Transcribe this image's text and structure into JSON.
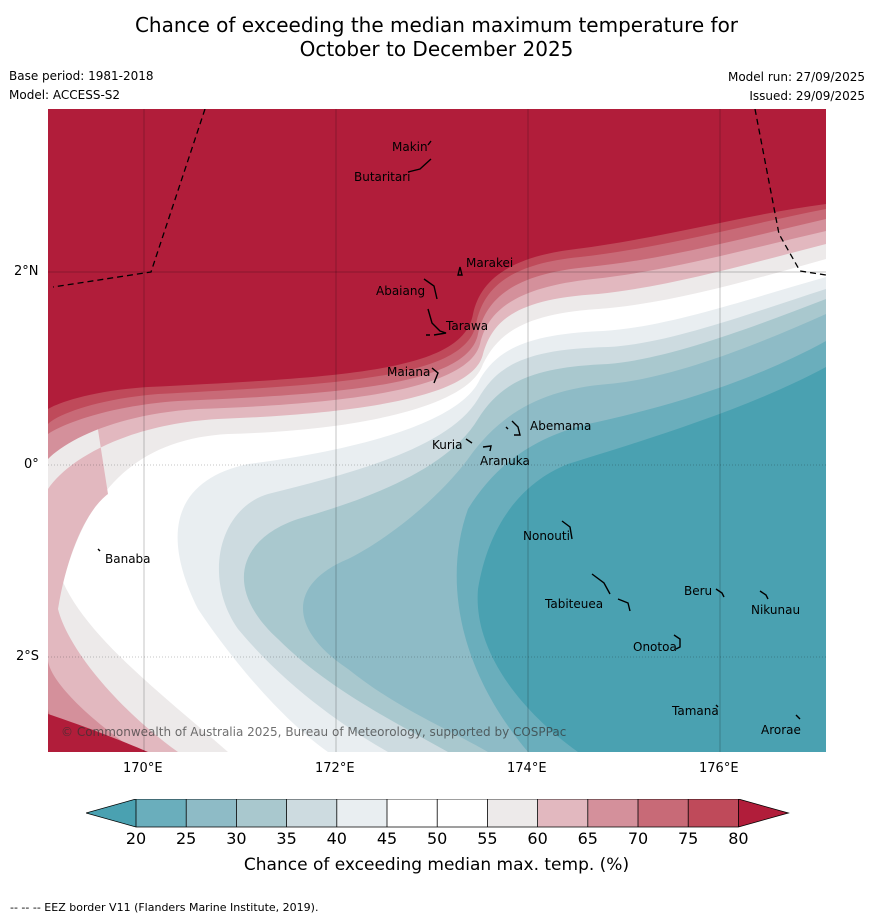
{
  "title": {
    "line1": "Chance of exceeding the median maximum temperature for",
    "line2": "October to December 2025"
  },
  "meta": {
    "base_period": "Base period: 1981-2018",
    "model": "Model: ACCESS-S2",
    "model_run": "Model run: 27/09/2025",
    "issued": "Issued: 29/09/2025"
  },
  "axes": {
    "x_ticks": [
      "170°E",
      "172°E",
      "174°E",
      "176°E"
    ],
    "y_ticks": [
      "2°N",
      "0°",
      "2°S"
    ]
  },
  "islands": {
    "makin": "Makin",
    "butaritari": "Butaritari",
    "marakei": "Marakei",
    "abaiang": "Abaiang",
    "tarawa": "Tarawa",
    "maiana": "Maiana",
    "abemama": "Abemama",
    "kuria": "Kuria",
    "aranuka": "Aranuka",
    "banaba": "Banaba",
    "nonouti": "Nonouti",
    "tabiteuea": "Tabiteuea",
    "beru": "Beru",
    "nikunau": "Nikunau",
    "onotoa": "Onotoa",
    "tamana": "Tamana",
    "arorae": "Arorae"
  },
  "copyright": "© Commonwealth of Australia 2025, Bureau of Meteorology, supported by COSPPac",
  "colorbar": {
    "ticks": [
      "20",
      "25",
      "30",
      "35",
      "40",
      "45",
      "50",
      "55",
      "60",
      "65",
      "70",
      "75",
      "80"
    ],
    "title": "Chance of exceeding median max. temp. (%)",
    "colors": {
      "below20": "#4aa1b1",
      "c20": "#6aaebc",
      "c25": "#8ebbc6",
      "c30": "#a9c8ce",
      "c35": "#cddbe0",
      "c40": "#e9eef1",
      "c45": "#ffffff",
      "c50": "#ffffff",
      "c55": "#edeaea",
      "c60": "#e2b8bf",
      "c65": "#d4909b",
      "c70": "#c86a77",
      "c75": "#bf4a5a",
      "above80": "#b11d3a"
    }
  },
  "footer": "--  --  -- EEZ border V11 (Flanders Marine Institute, 2019)."
}
